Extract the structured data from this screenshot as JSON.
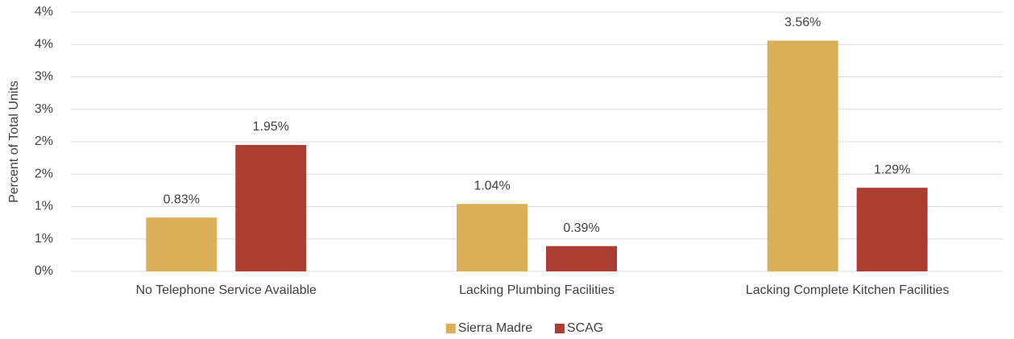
{
  "chart_data": {
    "type": "bar",
    "y_axis_label": "Percent of Total Units",
    "categories": [
      "No Telephone Service Available",
      "Lacking Plumbing Facilities",
      "Lacking Complete Kitchen Facilities"
    ],
    "series": [
      {
        "name": "Sierra Madre",
        "color": "#dbae58",
        "values": [
          0.83,
          1.04,
          3.56
        ],
        "value_labels": [
          "0.83%",
          "1.04%",
          "3.56%"
        ]
      },
      {
        "name": "SCAG",
        "color": "#ac3e31",
        "values": [
          1.95,
          0.39,
          1.29
        ],
        "value_labels": [
          "1.95%",
          "0.39%",
          "1.29%"
        ]
      }
    ],
    "ylim": [
      0,
      4
    ],
    "yticks": [
      {
        "value": 0,
        "label": "0%"
      },
      {
        "value": 0.5,
        "label": "1%"
      },
      {
        "value": 1,
        "label": "1%"
      },
      {
        "value": 1.5,
        "label": "2%"
      },
      {
        "value": 2,
        "label": "2%"
      },
      {
        "value": 2.5,
        "label": "3%"
      },
      {
        "value": 3,
        "label": "3%"
      },
      {
        "value": 3.5,
        "label": "4%"
      },
      {
        "value": 4,
        "label": "4%"
      }
    ],
    "grid": true,
    "legend": "bottom"
  }
}
